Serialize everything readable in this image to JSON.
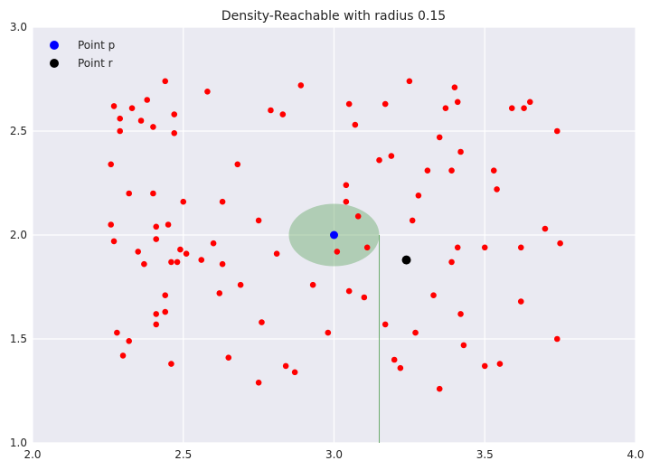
{
  "chart_data": {
    "type": "scatter",
    "title": "Density-Reachable with radius 0.15",
    "xlabel": "",
    "ylabel": "",
    "xlim": [
      2.0,
      4.0
    ],
    "ylim": [
      1.0,
      3.0
    ],
    "xticks": [
      "2.0",
      "2.5",
      "3.0",
      "3.5",
      "4.0"
    ],
    "yticks": [
      "1.0",
      "1.5",
      "2.0",
      "2.5",
      "3.0"
    ],
    "grid": true,
    "legend_position": "top-left",
    "legend": [
      {
        "label": "Point p",
        "color": "#0000ff"
      },
      {
        "label": "Point r",
        "color": "#000000"
      }
    ],
    "colors": {
      "background": "#eaeaf2",
      "grid": "#ffffff",
      "points": "#ff0000",
      "neighborhood": "#6aab6a",
      "guide_line": "#6aab6a"
    },
    "point_p": {
      "x": 3.0,
      "y": 2.0
    },
    "point_r": {
      "x": 3.24,
      "y": 1.88
    },
    "neighborhood": {
      "cx": 3.0,
      "cy": 2.0,
      "radius": 0.15
    },
    "guide_line": {
      "x": 3.15,
      "y_from": 1.0,
      "y_to": 2.0
    },
    "points": [
      [
        2.27,
        2.62
      ],
      [
        2.29,
        2.56
      ],
      [
        2.29,
        2.5
      ],
      [
        2.33,
        2.61
      ],
      [
        2.36,
        2.55
      ],
      [
        2.38,
        2.65
      ],
      [
        2.4,
        2.52
      ],
      [
        2.44,
        2.74
      ],
      [
        2.47,
        2.58
      ],
      [
        2.47,
        2.49
      ],
      [
        2.58,
        2.69
      ],
      [
        2.79,
        2.6
      ],
      [
        2.83,
        2.58
      ],
      [
        2.89,
        2.72
      ],
      [
        3.05,
        2.63
      ],
      [
        3.07,
        2.53
      ],
      [
        3.17,
        2.63
      ],
      [
        3.25,
        2.74
      ],
      [
        3.37,
        2.61
      ],
      [
        3.4,
        2.71
      ],
      [
        3.41,
        2.64
      ],
      [
        3.59,
        2.61
      ],
      [
        3.63,
        2.61
      ],
      [
        3.65,
        2.64
      ],
      [
        3.74,
        2.5
      ],
      [
        2.26,
        2.34
      ],
      [
        2.32,
        2.2
      ],
      [
        2.4,
        2.2
      ],
      [
        2.5,
        2.16
      ],
      [
        2.63,
        2.16
      ],
      [
        2.68,
        2.34
      ],
      [
        3.04,
        2.24
      ],
      [
        3.04,
        2.16
      ],
      [
        3.15,
        2.36
      ],
      [
        3.19,
        2.38
      ],
      [
        3.28,
        2.19
      ],
      [
        3.31,
        2.31
      ],
      [
        3.35,
        2.47
      ],
      [
        3.39,
        2.31
      ],
      [
        3.42,
        2.4
      ],
      [
        3.53,
        2.31
      ],
      [
        3.54,
        2.22
      ],
      [
        2.26,
        2.05
      ],
      [
        2.27,
        1.97
      ],
      [
        2.35,
        1.92
      ],
      [
        2.37,
        1.86
      ],
      [
        2.41,
        2.04
      ],
      [
        2.41,
        1.98
      ],
      [
        2.45,
        2.05
      ],
      [
        2.46,
        1.87
      ],
      [
        2.48,
        1.87
      ],
      [
        2.49,
        1.93
      ],
      [
        2.51,
        1.91
      ],
      [
        2.56,
        1.88
      ],
      [
        2.6,
        1.96
      ],
      [
        2.63,
        1.86
      ],
      [
        2.75,
        2.07
      ],
      [
        2.81,
        1.91
      ],
      [
        3.01,
        1.92
      ],
      [
        3.08,
        2.09
      ],
      [
        3.11,
        1.94
      ],
      [
        3.26,
        2.07
      ],
      [
        3.39,
        1.87
      ],
      [
        3.41,
        1.94
      ],
      [
        3.5,
        1.94
      ],
      [
        3.62,
        1.94
      ],
      [
        3.7,
        2.03
      ],
      [
        3.75,
        1.96
      ],
      [
        2.44,
        1.71
      ],
      [
        2.62,
        1.72
      ],
      [
        2.69,
        1.76
      ],
      [
        2.93,
        1.76
      ],
      [
        3.05,
        1.73
      ],
      [
        3.1,
        1.7
      ],
      [
        3.33,
        1.71
      ],
      [
        3.42,
        1.62
      ],
      [
        3.62,
        1.68
      ],
      [
        2.41,
        1.62
      ],
      [
        2.44,
        1.63
      ],
      [
        2.41,
        1.57
      ],
      [
        2.28,
        1.53
      ],
      [
        2.32,
        1.49
      ],
      [
        2.3,
        1.42
      ],
      [
        2.46,
        1.38
      ],
      [
        2.65,
        1.41
      ],
      [
        2.76,
        1.58
      ],
      [
        2.98,
        1.53
      ],
      [
        3.17,
        1.57
      ],
      [
        3.27,
        1.53
      ],
      [
        3.43,
        1.47
      ],
      [
        3.74,
        1.5
      ],
      [
        2.75,
        1.29
      ],
      [
        2.84,
        1.37
      ],
      [
        2.87,
        1.34
      ],
      [
        3.2,
        1.4
      ],
      [
        3.22,
        1.36
      ],
      [
        3.35,
        1.26
      ],
      [
        3.5,
        1.37
      ],
      [
        3.55,
        1.38
      ]
    ]
  }
}
